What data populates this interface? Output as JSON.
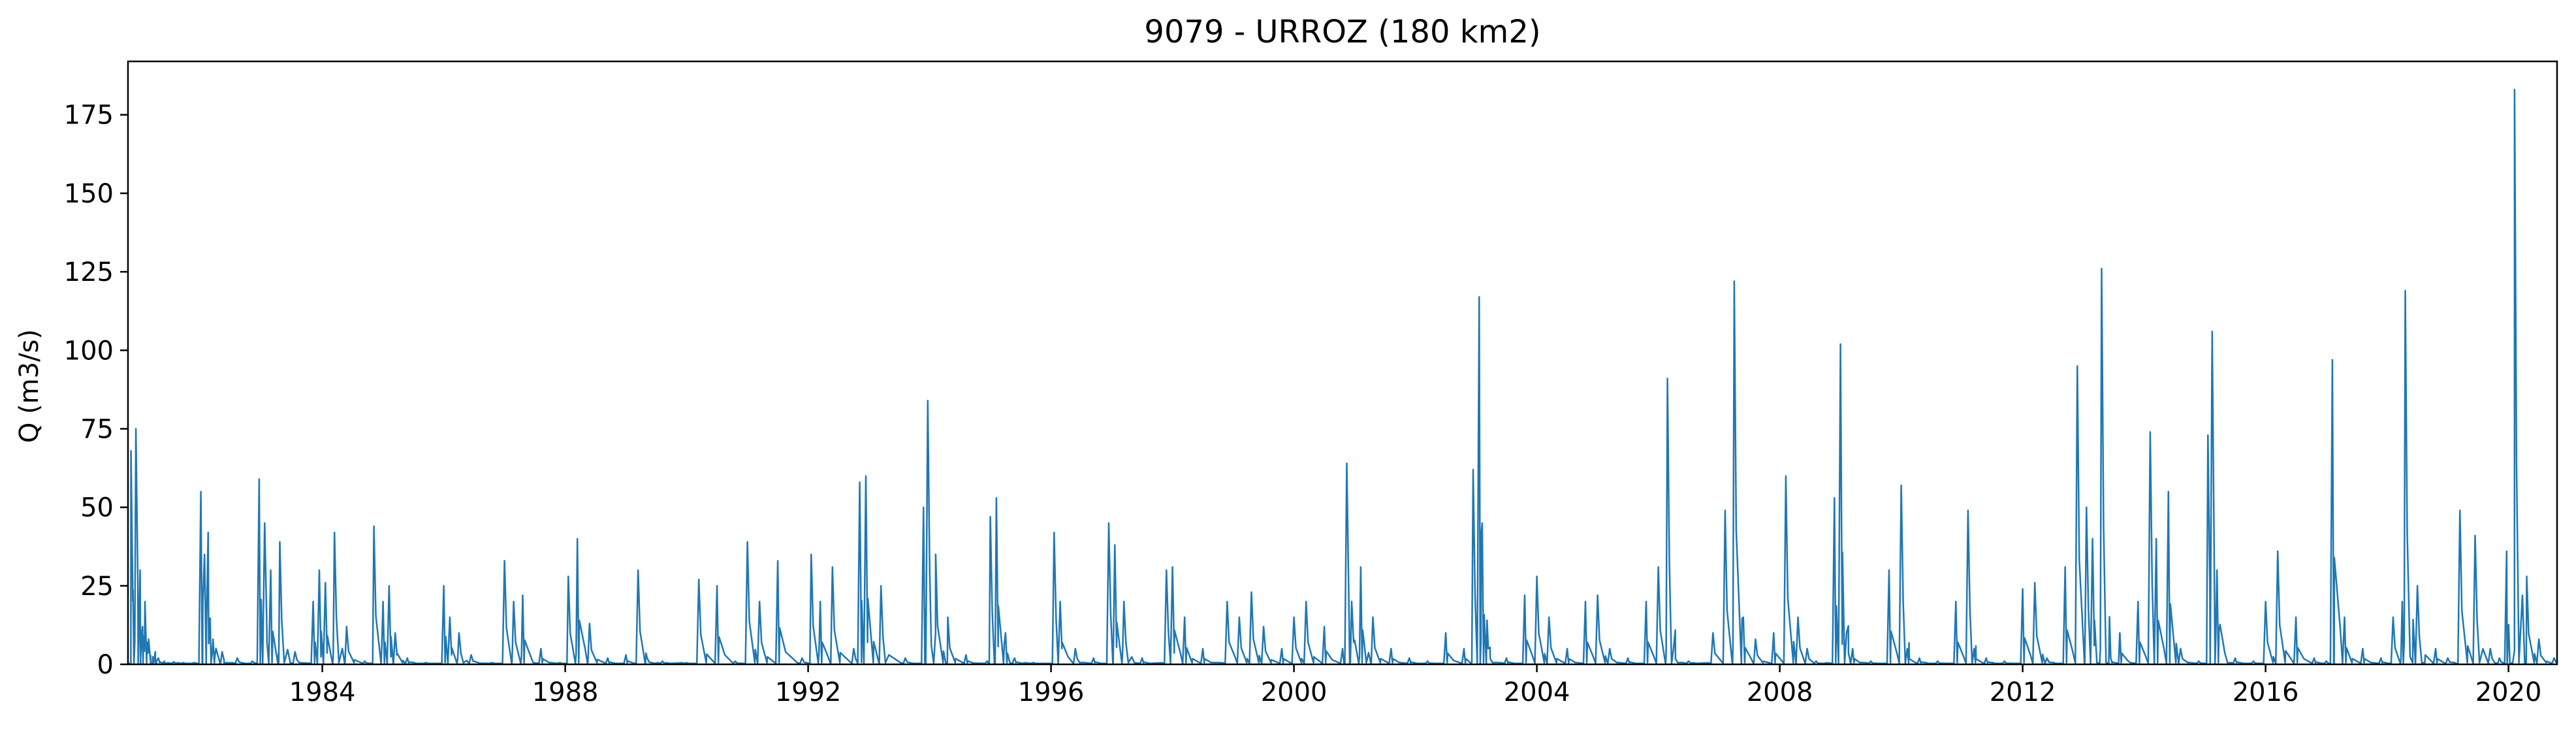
{
  "chart_data": {
    "type": "line",
    "title": "9079 - URROZ (180 km2)",
    "xlabel": "",
    "ylabel": "Q (m3/s)",
    "xlim": [
      1980.8,
      2020.8
    ],
    "ylim": [
      0,
      192
    ],
    "xticks": [
      "1984",
      "1988",
      "1992",
      "1996",
      "2000",
      "2004",
      "2008",
      "2012",
      "2016",
      "2020"
    ],
    "yticks": [
      "0",
      "25",
      "50",
      "75",
      "100",
      "125",
      "150",
      "175"
    ],
    "grid": false,
    "legend": "none",
    "series_color": "#1f77b4",
    "series": [
      {
        "x": [
          1980.85,
          1980.88,
          1980.93,
          1981.0,
          1981.04,
          1981.08,
          1981.14,
          1981.25,
          1981.3,
          1981.4,
          1981.55,
          1981.7,
          1981.9,
          1982.0,
          1982.06,
          1982.12,
          1982.2,
          1982.35,
          1982.6,
          1982.85,
          1982.96,
          1983.05,
          1983.15,
          1983.3,
          1983.55,
          1983.85,
          1983.95,
          1984.05,
          1984.2,
          1984.4,
          1984.7,
          1984.85,
          1985.0,
          1985.1,
          1985.2,
          1985.4,
          1985.7,
          1986.0,
          1986.1,
          1986.25,
          1986.45,
          1986.8,
          1987.0,
          1987.15,
          1987.3,
          1987.6,
          1987.9,
          1988.05,
          1988.2,
          1988.4,
          1988.7,
          1989.0,
          1989.2,
          1989.35,
          1989.6,
          1990.0,
          1990.2,
          1990.5,
          1990.8,
          1991.0,
          1991.2,
          1991.5,
          1991.9,
          1992.05,
          1992.2,
          1992.4,
          1992.75,
          1992.85,
          1992.95,
          1993.2,
          1993.6,
          1993.9,
          1993.97,
          1994.1,
          1994.3,
          1994.6,
          1994.95,
          1995.0,
          1995.1,
          1995.25,
          1995.4,
          1995.7,
          1996.05,
          1996.15,
          1996.4,
          1996.7,
          1996.95,
          1997.05,
          1997.2,
          1997.5,
          1997.9,
          1998.0,
          1998.2,
          1998.5,
          1998.9,
          1999.1,
          1999.3,
          1999.5,
          1999.8,
          2000.0,
          2000.2,
          2000.5,
          2000.8,
          2000.87,
          2000.95,
          2001.1,
          2001.3,
          2001.6,
          2001.9,
          2002.2,
          2002.5,
          2002.8,
          2002.95,
          2003.05,
          2003.1,
          2003.2,
          2003.5,
          2003.8,
          2004.0,
          2004.2,
          2004.5,
          2004.8,
          2005.0,
          2005.2,
          2005.5,
          2005.8,
          2006.0,
          2006.15,
          2006.25,
          2006.5,
          2006.9,
          2007.1,
          2007.25,
          2007.4,
          2007.6,
          2007.9,
          2008.1,
          2008.3,
          2008.45,
          2008.6,
          2008.9,
          2009.0,
          2009.1,
          2009.2,
          2009.5,
          2009.8,
          2010.0,
          2010.1,
          2010.3,
          2010.6,
          2010.9,
          2011.1,
          2011.2,
          2011.4,
          2011.7,
          2012.0,
          2012.2,
          2012.4,
          2012.7,
          2012.9,
          2013.05,
          2013.15,
          2013.3,
          2013.45,
          2013.6,
          2013.9,
          2014.1,
          2014.2,
          2014.4,
          2014.6,
          2014.9,
          2015.05,
          2015.12,
          2015.2,
          2015.5,
          2015.8,
          2016.0,
          2016.2,
          2016.5,
          2016.8,
          2017.0,
          2017.1,
          2017.3,
          2017.6,
          2017.9,
          2018.1,
          2018.25,
          2018.3,
          2018.5,
          2018.8,
          2019.0,
          2019.2,
          2019.45,
          2019.7,
          2019.85,
          2019.97,
          2020.1,
          2020.3,
          2020.5,
          2020.75
        ],
        "y": [
          68,
          20,
          75,
          30,
          12,
          20,
          8,
          4,
          2,
          1,
          0.8,
          0.5,
          0.5,
          55,
          35,
          42,
          8,
          4,
          2,
          1,
          59,
          45,
          30,
          39,
          4,
          20,
          30,
          26,
          42,
          12,
          1,
          44,
          20,
          25,
          10,
          2,
          0.5,
          25,
          15,
          10,
          3,
          0.5,
          33,
          20,
          22,
          5,
          0.5,
          28,
          40,
          13,
          2,
          3,
          30,
          2,
          1,
          0.5,
          27,
          25,
          1,
          39,
          20,
          33,
          2,
          35,
          20,
          31,
          5,
          58,
          60,
          25,
          2,
          50,
          84,
          35,
          15,
          3,
          1,
          47,
          53,
          10,
          2,
          0.5,
          42,
          20,
          5,
          2,
          45,
          38,
          20,
          2,
          30,
          31,
          15,
          5,
          20,
          15,
          23,
          12,
          5,
          15,
          20,
          12,
          5,
          64,
          20,
          31,
          15,
          5,
          2,
          1,
          10,
          5,
          62,
          117,
          45,
          5,
          2,
          22,
          28,
          15,
          5,
          20,
          22,
          5,
          2,
          20,
          31,
          91,
          5,
          1,
          10,
          49,
          122,
          15,
          8,
          10,
          60,
          15,
          5,
          1,
          53,
          102,
          10,
          5,
          1,
          30,
          57,
          5,
          2,
          1,
          20,
          49,
          5,
          2,
          1,
          24,
          26,
          2,
          31,
          95,
          50,
          40,
          126,
          2,
          10,
          20,
          74,
          40,
          55,
          5,
          1,
          73,
          106,
          30,
          2,
          1,
          20,
          36,
          15,
          2,
          1,
          97,
          15,
          5,
          2,
          15,
          20,
          119,
          25,
          5,
          2,
          49,
          41,
          5,
          2,
          36,
          183,
          28,
          8,
          2
        ]
      }
    ]
  }
}
